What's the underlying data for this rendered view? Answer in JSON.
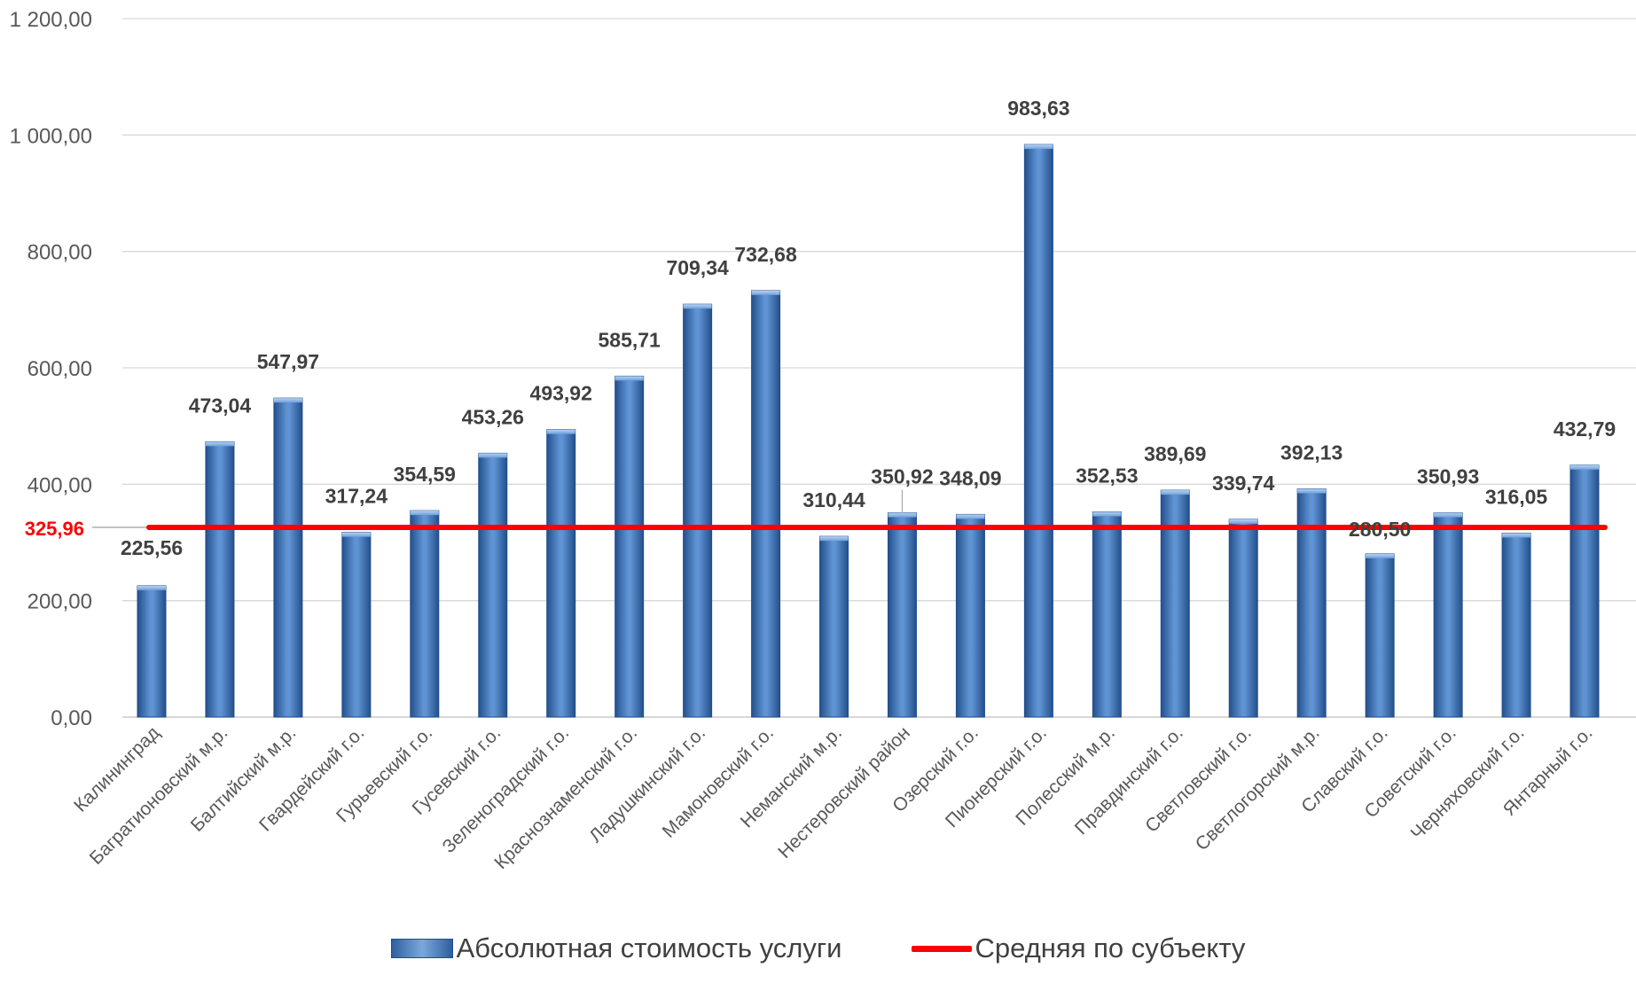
{
  "chart_data": {
    "type": "bar",
    "categories": [
      "Калининград",
      "Багратионовский м.р.",
      "Балтийский м.р.",
      "Гвардейский г.о.",
      "Гурьевский г.о.",
      "Гусевский г.о.",
      "Зеленоградский г.о.",
      "Краснознаменский г.о.",
      "Ладушкинский г.о.",
      "Мамоновский г.о.",
      "Неманский м.р.",
      "Нестеровский район",
      "Озерский г.о.",
      "Пионерский г.о.",
      "Полесский м.р.",
      "Правдинский г.о.",
      "Светловский г.о.",
      "Светлогорский м.р.",
      "Славский г.о.",
      "Советский г.о.",
      "Черняховский г.о.",
      "Янтарный г.о."
    ],
    "series": [
      {
        "name": "Абсолютная стоимость услуги",
        "values": [
          225.56,
          473.04,
          547.97,
          317.24,
          354.59,
          453.26,
          493.92,
          585.71,
          709.34,
          732.68,
          310.44,
          350.92,
          348.09,
          983.63,
          352.53,
          389.69,
          339.74,
          392.13,
          280.5,
          350.93,
          316.05,
          432.79
        ],
        "data_labels": [
          "225,56",
          "473,04",
          "547,97",
          "317,24",
          "354,59",
          "453,26",
          "493,92",
          "585,71",
          "709,34",
          "732,68",
          "310,44",
          "350,92",
          "348,09",
          "983,63",
          "352,53",
          "389,69",
          "339,74",
          "392,13",
          "280,50",
          "350,93",
          "316,05",
          "432,79"
        ],
        "color": "#2f5f9e"
      }
    ],
    "reference_line": {
      "name": "Средняя по субъекту",
      "value": 325.96,
      "label": "325,96",
      "color": "#ff0000"
    },
    "ylim": [
      0,
      1200
    ],
    "yticks": [
      0,
      200,
      400,
      600,
      800,
      1000,
      1200
    ],
    "ytick_labels": [
      "0,00",
      "200,00",
      "400,00",
      "600,00",
      "800,00",
      "1 000,00",
      "1 200,00"
    ],
    "xlabel": "",
    "ylabel": "",
    "title": "",
    "grid": true,
    "legend_position": "bottom"
  }
}
